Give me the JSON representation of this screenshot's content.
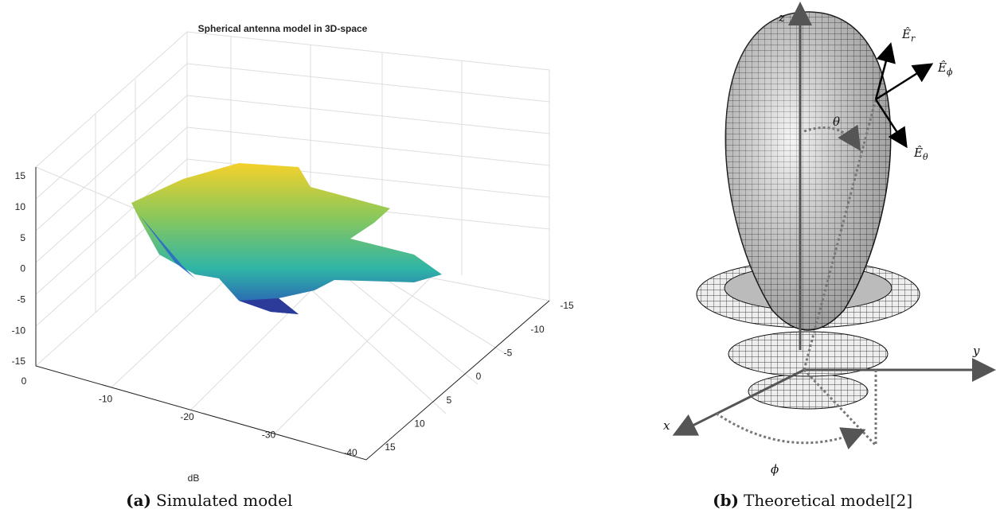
{
  "panel_a": {
    "title": "Spherical antenna model in 3D-space",
    "z_ticks": [
      15,
      10,
      5,
      0,
      -5,
      -10,
      -15
    ],
    "x_ticks": [
      0,
      -10,
      -20,
      -30,
      -40
    ],
    "y_ticks": [
      -15,
      -10,
      -5,
      0,
      5,
      10,
      15
    ],
    "x_label": "dB",
    "caption_label": "(a)",
    "caption": "Simulated model"
  },
  "panel_b": {
    "axes": {
      "z": "z",
      "y": "y",
      "x": "x"
    },
    "fields": [
      {
        "symbol": "Ê",
        "sub": "r"
      },
      {
        "symbol": "Ê",
        "sub": "ϕ"
      },
      {
        "symbol": "Ê",
        "sub": "θ"
      }
    ],
    "angles": {
      "theta": "θ",
      "phi": "ϕ"
    },
    "caption_label": "(b)",
    "caption": "Theoretical model[2]"
  }
}
